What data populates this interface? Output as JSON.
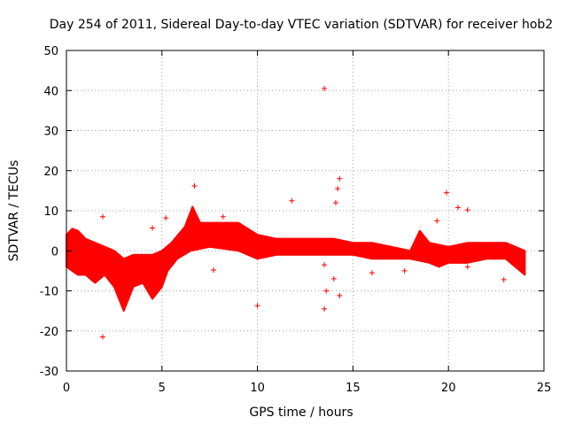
{
  "chart_data": {
    "type": "scatter",
    "title": "Day 254 of 2011, Sidereal Day-to-day VTEC variation (SDTVAR) for receiver hob2",
    "xlabel": "GPS time / hours",
    "ylabel": "SDTVAR / TECUs",
    "xlim": [
      0,
      25
    ],
    "ylim": [
      -30,
      50
    ],
    "x_ticks": [
      0,
      5,
      10,
      15,
      20,
      25
    ],
    "y_ticks": [
      -30,
      -20,
      -10,
      0,
      10,
      20,
      30,
      40,
      50
    ],
    "grid": true,
    "marker": "+",
    "color": "#ff0000",
    "series": [
      {
        "name": "SDTVAR",
        "band_lower": [
          [
            0,
            -4
          ],
          [
            0.3,
            -5
          ],
          [
            0.6,
            -6
          ],
          [
            1.0,
            -6
          ],
          [
            1.5,
            -8
          ],
          [
            2.0,
            -6
          ],
          [
            2.5,
            -9
          ],
          [
            3.0,
            -15
          ],
          [
            3.5,
            -9
          ],
          [
            4.0,
            -8
          ],
          [
            4.5,
            -12
          ],
          [
            5.0,
            -9
          ],
          [
            5.3,
            -5
          ],
          [
            5.8,
            -2
          ],
          [
            6.5,
            0
          ],
          [
            7.5,
            1
          ],
          [
            9.0,
            0
          ],
          [
            10.0,
            -2
          ],
          [
            11.0,
            -1
          ],
          [
            12.0,
            -1
          ],
          [
            13.0,
            -1
          ],
          [
            14.0,
            -1
          ],
          [
            15.0,
            -1
          ],
          [
            16.0,
            -2
          ],
          [
            17.0,
            -2
          ],
          [
            18.0,
            -2
          ],
          [
            19.0,
            -3
          ],
          [
            19.5,
            -4
          ],
          [
            20.0,
            -3
          ],
          [
            21.0,
            -3
          ],
          [
            22.0,
            -2
          ],
          [
            23.0,
            -2
          ],
          [
            24.0,
            -6
          ]
        ],
        "band_upper": [
          [
            0,
            4
          ],
          [
            0.3,
            5.5
          ],
          [
            0.6,
            5
          ],
          [
            1.0,
            3
          ],
          [
            1.5,
            2
          ],
          [
            2.0,
            1
          ],
          [
            2.5,
            0
          ],
          [
            3.0,
            -2
          ],
          [
            3.5,
            -1
          ],
          [
            4.0,
            -1
          ],
          [
            4.5,
            -1
          ],
          [
            5.0,
            0
          ],
          [
            5.5,
            2
          ],
          [
            6.2,
            6
          ],
          [
            6.6,
            11
          ],
          [
            7.0,
            7
          ],
          [
            8.0,
            7
          ],
          [
            9.0,
            7
          ],
          [
            10.0,
            4
          ],
          [
            11.0,
            3
          ],
          [
            12.0,
            3
          ],
          [
            13.0,
            3
          ],
          [
            14.0,
            3
          ],
          [
            15.0,
            2
          ],
          [
            16.0,
            2
          ],
          [
            17.0,
            1
          ],
          [
            18.0,
            0
          ],
          [
            18.5,
            5
          ],
          [
            19.0,
            2
          ],
          [
            20.0,
            1
          ],
          [
            21.0,
            2
          ],
          [
            22.0,
            2
          ],
          [
            23.0,
            2
          ],
          [
            24.0,
            0
          ]
        ],
        "points": [
          [
            1.9,
            8.5
          ],
          [
            1.9,
            -21.5
          ],
          [
            4.5,
            5.7
          ],
          [
            5.2,
            8.2
          ],
          [
            6.7,
            16.2
          ],
          [
            7.7,
            -4.8
          ],
          [
            8.2,
            8.5
          ],
          [
            10.0,
            -13.7
          ],
          [
            11.8,
            12.5
          ],
          [
            13.5,
            40.5
          ],
          [
            13.5,
            -14.5
          ],
          [
            13.6,
            -10
          ],
          [
            13.5,
            -3.5
          ],
          [
            14.1,
            12
          ],
          [
            14.2,
            15.5
          ],
          [
            14.3,
            18
          ],
          [
            14.3,
            -11.2
          ],
          [
            16.0,
            -5.5
          ],
          [
            17.7,
            -5
          ],
          [
            19.4,
            7.5
          ],
          [
            19.9,
            14.5
          ],
          [
            20.5,
            10.8
          ],
          [
            21.0,
            10.2
          ],
          [
            22.9,
            -7.2
          ],
          [
            12.6,
            1
          ],
          [
            14.0,
            -7
          ],
          [
            21.0,
            -4
          ]
        ]
      }
    ]
  }
}
